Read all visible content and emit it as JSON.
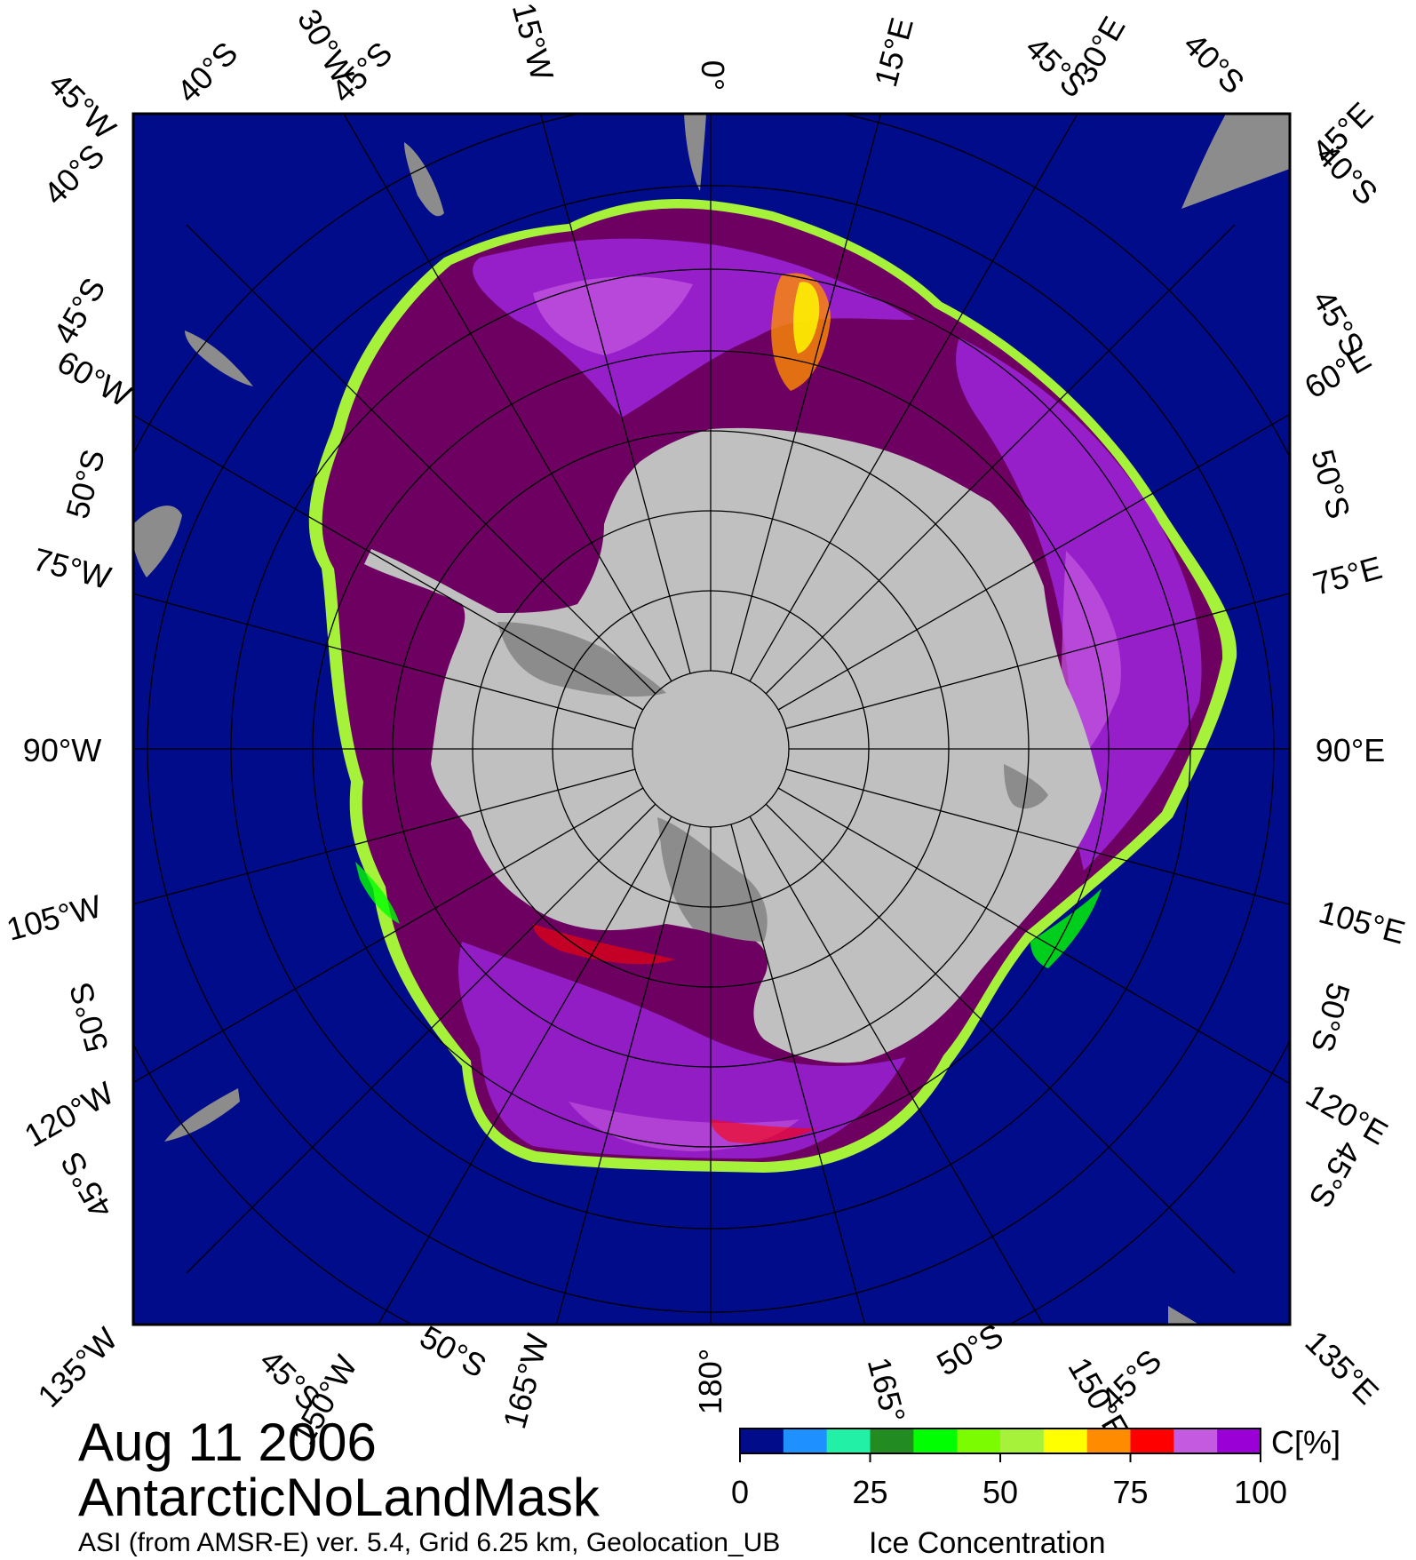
{
  "map": {
    "date": "Aug 11 2006",
    "region": "AntarcticNoLandMask",
    "source": "ASI (from AMSR-E) ver. 5.4,  Grid 6.25 km, Geolocation_UB",
    "product": "Ice Concentration",
    "projection": "south-polar-stereographic",
    "colors": {
      "ocean": "#000c8a",
      "land": "#c0c0c0",
      "ice_shelf": "#8c8c8c",
      "ice_dense": "#6e0062",
      "ice_medium": "#9a22d6",
      "ice_light": "#c45ae0"
    }
  },
  "longitude_labels": {
    "top": [
      "45°W",
      "30°W",
      "15°W",
      "0°",
      "15°E",
      "30°E",
      "45°E"
    ],
    "left": [
      "60°W",
      "75°W",
      "90°W",
      "105°W",
      "120°W"
    ],
    "right": [
      "60°E",
      "75°E",
      "90°E",
      "105°E",
      "120°E"
    ],
    "bottom": [
      "135°W",
      "150°W",
      "165°W",
      "180°",
      "165°",
      "150°E",
      "135°E"
    ]
  },
  "latitude_labels": {
    "top": [
      "40°S",
      "45°S",
      "45°S",
      "40°S"
    ],
    "left": [
      "40°S",
      "45°S",
      "50°S",
      "50°S",
      "45°S"
    ],
    "right": [
      "40°S",
      "45°S",
      "50°S",
      "50°S",
      "45°S"
    ],
    "bottom": [
      "45°S",
      "50°S",
      "50°S",
      "45°S"
    ]
  },
  "colorbar": {
    "unit": "C[%]",
    "ticks": [
      "0",
      "25",
      "50",
      "75",
      "100"
    ],
    "range": [
      0,
      100
    ],
    "colors": [
      "#000c8a",
      "#1e90ff",
      "#22f0a6",
      "#228b22",
      "#00ff00",
      "#7cfc00",
      "#a6f23a",
      "#ffff00",
      "#ff8c00",
      "#ff0000",
      "#c45ae0",
      "#9a00d6"
    ]
  }
}
